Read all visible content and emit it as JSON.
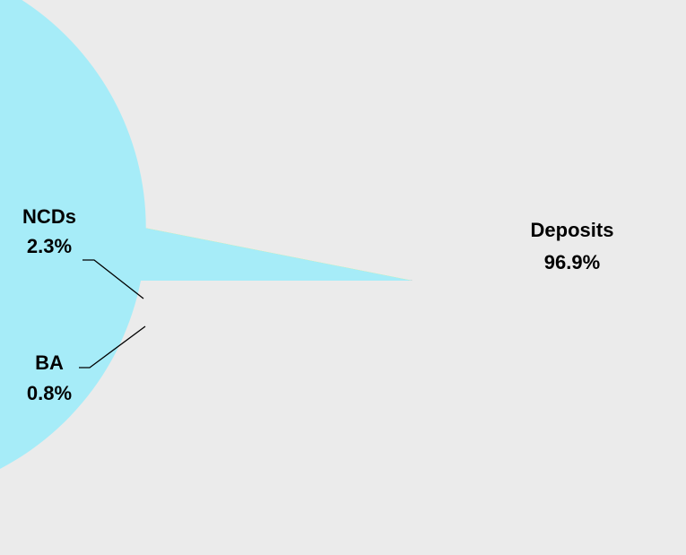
{
  "chart_data": {
    "type": "pie",
    "categories": [
      "NCDs",
      "BA",
      "Deposits"
    ],
    "values": [
      2.3,
      0.8,
      96.9
    ],
    "value_labels": [
      "2.3%",
      "0.8%",
      "96.9%"
    ],
    "colors": [
      "#001a5c",
      "#ffff00",
      "#a6ecf8"
    ]
  }
}
